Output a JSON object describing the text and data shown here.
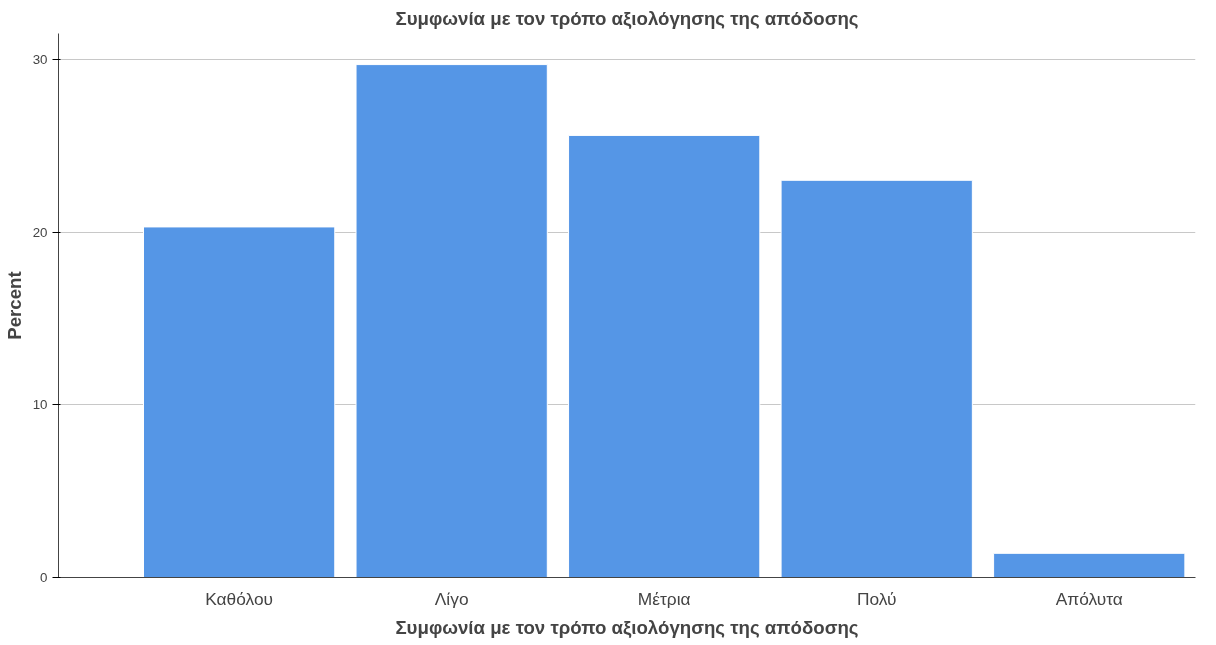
{
  "chart_data": {
    "type": "bar",
    "title": "Συμφωνία με τον τρόπο αξιολόγησης της απόδοσης",
    "xlabel": "Συμφωνία με τον τρόπο αξιολόγησης της απόδοσης",
    "ylabel": "Percent",
    "categories": [
      "Καθόλου",
      "Λίγο",
      "Μέτρια",
      "Πολύ",
      "Απόλυτα"
    ],
    "values": [
      20.3,
      29.7,
      25.6,
      23.0,
      1.4
    ],
    "color": "#5596e6",
    "ylim": [
      0,
      31.5
    ],
    "yticks": [
      0,
      10,
      20,
      30
    ],
    "grid": "y"
  }
}
